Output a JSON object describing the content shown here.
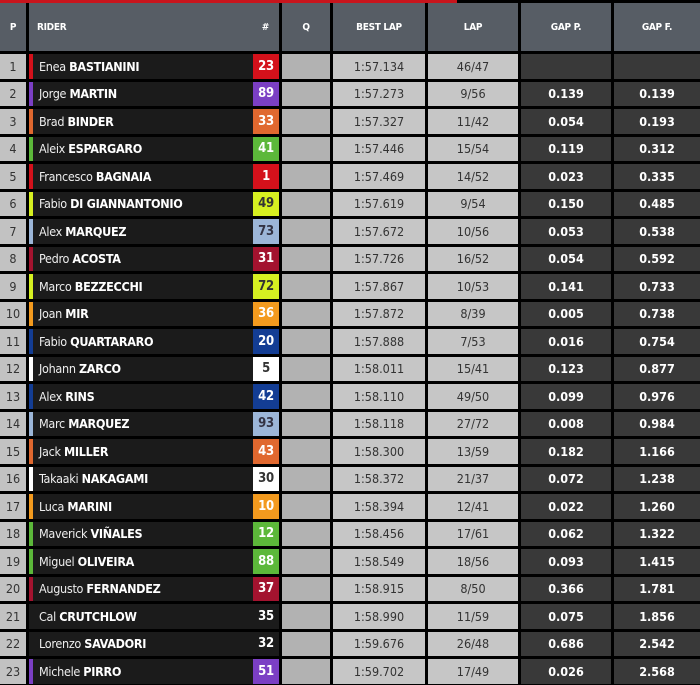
{
  "headers": {
    "p": "P",
    "rider": "RIDER",
    "num": "#",
    "q": "Q",
    "best_lap": "BEST LAP",
    "lap": "LAP",
    "gap_p": "GAP P.",
    "gap_f": "GAP F."
  },
  "rows": [
    {
      "pos": "1",
      "first": "Enea",
      "last": "BASTIANINI",
      "num": "23",
      "color": "#d4111b",
      "text": "#fff",
      "best": "1:57.134",
      "lap": "46/47",
      "gap_p": "",
      "gap_f": ""
    },
    {
      "pos": "2",
      "first": "Jorge",
      "last": "MARTIN",
      "num": "89",
      "color": "#7b3fc4",
      "text": "#fff",
      "best": "1:57.273",
      "lap": "9/56",
      "gap_p": "0.139",
      "gap_f": "0.139"
    },
    {
      "pos": "3",
      "first": "Brad",
      "last": "BINDER",
      "num": "33",
      "color": "#e0682f",
      "text": "#fff",
      "best": "1:57.327",
      "lap": "11/42",
      "gap_p": "0.054",
      "gap_f": "0.193"
    },
    {
      "pos": "4",
      "first": "Aleix",
      "last": "ESPARGARO",
      "num": "41",
      "color": "#5cb83a",
      "text": "#fff",
      "best": "1:57.446",
      "lap": "15/54",
      "gap_p": "0.119",
      "gap_f": "0.312"
    },
    {
      "pos": "5",
      "first": "Francesco",
      "last": "BAGNAIA",
      "num": "1",
      "color": "#d4111b",
      "text": "#fff",
      "best": "1:57.469",
      "lap": "14/52",
      "gap_p": "0.023",
      "gap_f": "0.335"
    },
    {
      "pos": "6",
      "first": "Fabio",
      "last": "DI GIANNANTONIO",
      "num": "49",
      "color": "#d6f021",
      "text": "#333",
      "best": "1:57.619",
      "lap": "9/54",
      "gap_p": "0.150",
      "gap_f": "0.485"
    },
    {
      "pos": "7",
      "first": "Alex",
      "last": "MARQUEZ",
      "num": "73",
      "color": "#9cb6d8",
      "text": "#334",
      "best": "1:57.672",
      "lap": "10/56",
      "gap_p": "0.053",
      "gap_f": "0.538"
    },
    {
      "pos": "8",
      "first": "Pedro",
      "last": "ACOSTA",
      "num": "31",
      "color": "#a3132f",
      "text": "#fff",
      "best": "1:57.726",
      "lap": "16/52",
      "gap_p": "0.054",
      "gap_f": "0.592"
    },
    {
      "pos": "9",
      "first": "Marco",
      "last": "BEZZECCHI",
      "num": "72",
      "color": "#d6f021",
      "text": "#333",
      "best": "1:57.867",
      "lap": "10/53",
      "gap_p": "0.141",
      "gap_f": "0.733"
    },
    {
      "pos": "10",
      "first": "Joan",
      "last": "MIR",
      "num": "36",
      "color": "#f39a1e",
      "text": "#fff",
      "best": "1:57.872",
      "lap": "8/39",
      "gap_p": "0.005",
      "gap_f": "0.738"
    },
    {
      "pos": "11",
      "first": "Fabio",
      "last": "QUARTARARO",
      "num": "20",
      "color": "#133d94",
      "text": "#fff",
      "best": "1:57.888",
      "lap": "7/53",
      "gap_p": "0.016",
      "gap_f": "0.754"
    },
    {
      "pos": "12",
      "first": "Johann",
      "last": "ZARCO",
      "num": "5",
      "color": "#ffffff",
      "text": "#333",
      "best": "1:58.011",
      "lap": "15/41",
      "gap_p": "0.123",
      "gap_f": "0.877"
    },
    {
      "pos": "13",
      "first": "Alex",
      "last": "RINS",
      "num": "42",
      "color": "#133d94",
      "text": "#fff",
      "best": "1:58.110",
      "lap": "49/50",
      "gap_p": "0.099",
      "gap_f": "0.976"
    },
    {
      "pos": "14",
      "first": "Marc",
      "last": "MARQUEZ",
      "num": "93",
      "color": "#9cb6d8",
      "text": "#334",
      "best": "1:58.118",
      "lap": "27/72",
      "gap_p": "0.008",
      "gap_f": "0.984"
    },
    {
      "pos": "15",
      "first": "Jack",
      "last": "MILLER",
      "num": "43",
      "color": "#e0682f",
      "text": "#fff",
      "best": "1:58.300",
      "lap": "13/59",
      "gap_p": "0.182",
      "gap_f": "1.166"
    },
    {
      "pos": "16",
      "first": "Takaaki",
      "last": "NAKAGAMI",
      "num": "30",
      "color": "#ffffff",
      "text": "#333",
      "best": "1:58.372",
      "lap": "21/37",
      "gap_p": "0.072",
      "gap_f": "1.238"
    },
    {
      "pos": "17",
      "first": "Luca",
      "last": "MARINI",
      "num": "10",
      "color": "#f39a1e",
      "text": "#fff",
      "best": "1:58.394",
      "lap": "12/41",
      "gap_p": "0.022",
      "gap_f": "1.260"
    },
    {
      "pos": "18",
      "first": "Maverick",
      "last": "VIÑALES",
      "num": "12",
      "color": "#5cb83a",
      "text": "#fff",
      "best": "1:58.456",
      "lap": "17/61",
      "gap_p": "0.062",
      "gap_f": "1.322"
    },
    {
      "pos": "19",
      "first": "Miguel",
      "last": "OLIVEIRA",
      "num": "88",
      "color": "#5cb83a",
      "text": "#fff",
      "best": "1:58.549",
      "lap": "18/56",
      "gap_p": "0.093",
      "gap_f": "1.415"
    },
    {
      "pos": "20",
      "first": "Augusto",
      "last": "FERNANDEZ",
      "num": "37",
      "color": "#a3132f",
      "text": "#fff",
      "best": "1:58.915",
      "lap": "8/50",
      "gap_p": "0.366",
      "gap_f": "1.781"
    },
    {
      "pos": "21",
      "first": "Cal",
      "last": "CRUTCHLOW",
      "num": "35",
      "color": "#1b1b1b",
      "text": "#fff",
      "best": "1:58.990",
      "lap": "11/59",
      "gap_p": "0.075",
      "gap_f": "1.856"
    },
    {
      "pos": "22",
      "first": "Lorenzo",
      "last": "SAVADORI",
      "num": "32",
      "color": "#1b1b1b",
      "text": "#fff",
      "best": "1:59.676",
      "lap": "26/48",
      "gap_p": "0.686",
      "gap_f": "2.542"
    },
    {
      "pos": "23",
      "first": "Michele",
      "last": "PIRRO",
      "num": "51",
      "color": "#7b3fc4",
      "text": "#fff",
      "best": "1:59.702",
      "lap": "17/49",
      "gap_p": "0.026",
      "gap_f": "2.568"
    }
  ]
}
